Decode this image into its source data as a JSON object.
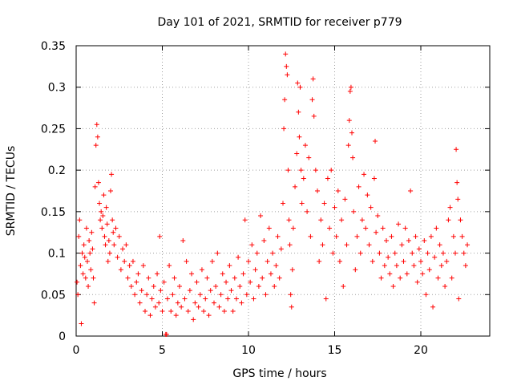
{
  "chart_data": {
    "type": "scatter",
    "title": "Day 101 of 2021, SRMTID for receiver p779",
    "xlabel": "GPS time / hours",
    "ylabel": "SRMTID / TECUs",
    "xlim": [
      0,
      24
    ],
    "ylim": [
      0,
      0.35
    ],
    "x_ticks": [
      0,
      5,
      10,
      15,
      20
    ],
    "x_tick_labels": [
      "0",
      "5",
      "10",
      "15",
      "20"
    ],
    "y_ticks": [
      0,
      0.05,
      0.1,
      0.15,
      0.2,
      0.25,
      0.3,
      0.35
    ],
    "y_tick_labels": [
      "0",
      "0.05",
      "0.1",
      "0.15",
      "0.2",
      "0.25",
      "0.3",
      "0.35"
    ],
    "grid": true,
    "marker": "plus",
    "color": "#ff0000",
    "series": [
      {
        "name": "SRMTID",
        "points": [
          [
            0.05,
            0.065
          ],
          [
            0.1,
            0.05
          ],
          [
            0.15,
            0.12
          ],
          [
            0.2,
            0.14
          ],
          [
            0.25,
            0.085
          ],
          [
            0.3,
            0.015
          ],
          [
            0.35,
            0.1
          ],
          [
            0.4,
            0.075
          ],
          [
            0.45,
            0.11
          ],
          [
            0.5,
            0.095
          ],
          [
            0.55,
            0.07
          ],
          [
            0.6,
            0.13
          ],
          [
            0.65,
            0.09
          ],
          [
            0.7,
            0.06
          ],
          [
            0.75,
            0.115
          ],
          [
            0.8,
            0.1
          ],
          [
            0.85,
            0.08
          ],
          [
            0.9,
            0.125
          ],
          [
            0.95,
            0.105
          ],
          [
            1.0,
            0.07
          ],
          [
            1.05,
            0.04
          ],
          [
            1.1,
            0.18
          ],
          [
            1.15,
            0.23
          ],
          [
            1.2,
            0.255
          ],
          [
            1.25,
            0.24
          ],
          [
            1.3,
            0.185
          ],
          [
            1.35,
            0.16
          ],
          [
            1.4,
            0.14
          ],
          [
            1.45,
            0.15
          ],
          [
            1.5,
            0.13
          ],
          [
            1.55,
            0.145
          ],
          [
            1.6,
            0.17
          ],
          [
            1.65,
            0.12
          ],
          [
            1.7,
            0.11
          ],
          [
            1.75,
            0.155
          ],
          [
            1.8,
            0.135
          ],
          [
            1.85,
            0.09
          ],
          [
            1.9,
            0.115
          ],
          [
            1.95,
            0.1
          ],
          [
            2.0,
            0.175
          ],
          [
            2.05,
            0.195
          ],
          [
            2.1,
            0.14
          ],
          [
            2.15,
            0.125
          ],
          [
            2.2,
            0.11
          ],
          [
            2.3,
            0.13
          ],
          [
            2.4,
            0.095
          ],
          [
            2.5,
            0.12
          ],
          [
            2.6,
            0.08
          ],
          [
            2.7,
            0.105
          ],
          [
            2.8,
            0.09
          ],
          [
            2.9,
            0.11
          ],
          [
            3.0,
            0.07
          ],
          [
            3.1,
            0.085
          ],
          [
            3.2,
            0.06
          ],
          [
            3.3,
            0.09
          ],
          [
            3.4,
            0.05
          ],
          [
            3.5,
            0.065
          ],
          [
            3.6,
            0.075
          ],
          [
            3.7,
            0.04
          ],
          [
            3.8,
            0.055
          ],
          [
            3.9,
            0.085
          ],
          [
            4.0,
            0.03
          ],
          [
            4.1,
            0.05
          ],
          [
            4.2,
            0.07
          ],
          [
            4.3,
            0.025
          ],
          [
            4.4,
            0.045
          ],
          [
            4.5,
            0.06
          ],
          [
            4.6,
            0.035
          ],
          [
            4.7,
            0.075
          ],
          [
            4.8,
            0.04
          ],
          [
            4.85,
            0.12
          ],
          [
            4.9,
            0.055
          ],
          [
            5.0,
            0.03
          ],
          [
            5.1,
            0.065
          ],
          [
            5.2,
            0.002
          ],
          [
            5.25,
            0.002
          ],
          [
            5.3,
            0.045
          ],
          [
            5.4,
            0.085
          ],
          [
            5.5,
            0.03
          ],
          [
            5.6,
            0.05
          ],
          [
            5.7,
            0.07
          ],
          [
            5.8,
            0.025
          ],
          [
            5.9,
            0.04
          ],
          [
            6.0,
            0.06
          ],
          [
            6.1,
            0.035
          ],
          [
            6.2,
            0.115
          ],
          [
            6.3,
            0.045
          ],
          [
            6.4,
            0.09
          ],
          [
            6.5,
            0.03
          ],
          [
            6.6,
            0.055
          ],
          [
            6.7,
            0.075
          ],
          [
            6.8,
            0.02
          ],
          [
            6.9,
            0.04
          ],
          [
            7.0,
            0.065
          ],
          [
            7.1,
            0.035
          ],
          [
            7.2,
            0.05
          ],
          [
            7.3,
            0.08
          ],
          [
            7.4,
            0.03
          ],
          [
            7.5,
            0.045
          ],
          [
            7.6,
            0.07
          ],
          [
            7.7,
            0.025
          ],
          [
            7.8,
            0.055
          ],
          [
            7.9,
            0.09
          ],
          [
            8.0,
            0.04
          ],
          [
            8.1,
            0.06
          ],
          [
            8.2,
            0.1
          ],
          [
            8.3,
            0.035
          ],
          [
            8.4,
            0.05
          ],
          [
            8.5,
            0.075
          ],
          [
            8.6,
            0.03
          ],
          [
            8.7,
            0.065
          ],
          [
            8.8,
            0.045
          ],
          [
            8.9,
            0.085
          ],
          [
            9.0,
            0.055
          ],
          [
            9.1,
            0.03
          ],
          [
            9.2,
            0.07
          ],
          [
            9.3,
            0.045
          ],
          [
            9.4,
            0.095
          ],
          [
            9.5,
            0.06
          ],
          [
            9.6,
            0.04
          ],
          [
            9.7,
            0.075
          ],
          [
            9.8,
            0.14
          ],
          [
            9.9,
            0.05
          ],
          [
            10.0,
            0.09
          ],
          [
            10.1,
            0.065
          ],
          [
            10.2,
            0.11
          ],
          [
            10.3,
            0.045
          ],
          [
            10.4,
            0.08
          ],
          [
            10.5,
            0.1
          ],
          [
            10.6,
            0.06
          ],
          [
            10.7,
            0.145
          ],
          [
            10.8,
            0.07
          ],
          [
            10.9,
            0.115
          ],
          [
            11.0,
            0.05
          ],
          [
            11.1,
            0.09
          ],
          [
            11.2,
            0.13
          ],
          [
            11.3,
            0.075
          ],
          [
            11.4,
            0.1
          ],
          [
            11.5,
            0.06
          ],
          [
            11.6,
            0.085
          ],
          [
            11.7,
            0.12
          ],
          [
            11.8,
            0.07
          ],
          [
            11.9,
            0.105
          ],
          [
            12.0,
            0.16
          ],
          [
            12.05,
            0.25
          ],
          [
            12.1,
            0.285
          ],
          [
            12.15,
            0.34
          ],
          [
            12.2,
            0.325
          ],
          [
            12.25,
            0.315
          ],
          [
            12.3,
            0.2
          ],
          [
            12.35,
            0.14
          ],
          [
            12.4,
            0.11
          ],
          [
            12.45,
            0.05
          ],
          [
            12.5,
            0.035
          ],
          [
            12.55,
            0.08
          ],
          [
            12.6,
            0.13
          ],
          [
            12.7,
            0.18
          ],
          [
            12.8,
            0.22
          ],
          [
            12.85,
            0.305
          ],
          [
            12.9,
            0.27
          ],
          [
            12.95,
            0.24
          ],
          [
            13.0,
            0.3
          ],
          [
            13.05,
            0.2
          ],
          [
            13.1,
            0.16
          ],
          [
            13.2,
            0.19
          ],
          [
            13.3,
            0.23
          ],
          [
            13.4,
            0.15
          ],
          [
            13.5,
            0.215
          ],
          [
            13.6,
            0.12
          ],
          [
            13.7,
            0.285
          ],
          [
            13.75,
            0.31
          ],
          [
            13.8,
            0.265
          ],
          [
            13.9,
            0.2
          ],
          [
            14.0,
            0.175
          ],
          [
            14.1,
            0.09
          ],
          [
            14.2,
            0.14
          ],
          [
            14.3,
            0.11
          ],
          [
            14.4,
            0.16
          ],
          [
            14.5,
            0.045
          ],
          [
            14.6,
            0.19
          ],
          [
            14.7,
            0.13
          ],
          [
            14.8,
            0.2
          ],
          [
            14.9,
            0.1
          ],
          [
            15.0,
            0.155
          ],
          [
            15.1,
            0.12
          ],
          [
            15.2,
            0.175
          ],
          [
            15.3,
            0.09
          ],
          [
            15.4,
            0.14
          ],
          [
            15.5,
            0.06
          ],
          [
            15.6,
            0.165
          ],
          [
            15.7,
            0.11
          ],
          [
            15.8,
            0.23
          ],
          [
            15.85,
            0.26
          ],
          [
            15.9,
            0.295
          ],
          [
            15.95,
            0.3
          ],
          [
            16.0,
            0.245
          ],
          [
            16.05,
            0.215
          ],
          [
            16.1,
            0.15
          ],
          [
            16.2,
            0.08
          ],
          [
            16.3,
            0.12
          ],
          [
            16.4,
            0.18
          ],
          [
            16.5,
            0.1
          ],
          [
            16.6,
            0.14
          ],
          [
            16.7,
            0.195
          ],
          [
            16.8,
            0.13
          ],
          [
            16.9,
            0.17
          ],
          [
            17.0,
            0.11
          ],
          [
            17.1,
            0.155
          ],
          [
            17.2,
            0.09
          ],
          [
            17.3,
            0.19
          ],
          [
            17.35,
            0.235
          ],
          [
            17.4,
            0.125
          ],
          [
            17.5,
            0.145
          ],
          [
            17.6,
            0.1
          ],
          [
            17.7,
            0.07
          ],
          [
            17.8,
            0.13
          ],
          [
            17.9,
            0.085
          ],
          [
            18.0,
            0.115
          ],
          [
            18.1,
            0.095
          ],
          [
            18.2,
            0.075
          ],
          [
            18.3,
            0.12
          ],
          [
            18.4,
            0.06
          ],
          [
            18.5,
            0.1
          ],
          [
            18.6,
            0.085
          ],
          [
            18.7,
            0.135
          ],
          [
            18.8,
            0.07
          ],
          [
            18.9,
            0.11
          ],
          [
            19.0,
            0.09
          ],
          [
            19.1,
            0.13
          ],
          [
            19.2,
            0.075
          ],
          [
            19.3,
            0.115
          ],
          [
            19.4,
            0.175
          ],
          [
            19.5,
            0.1
          ],
          [
            19.6,
            0.085
          ],
          [
            19.7,
            0.12
          ],
          [
            19.8,
            0.065
          ],
          [
            19.9,
            0.105
          ],
          [
            20.0,
            0.09
          ],
          [
            20.1,
            0.075
          ],
          [
            20.2,
            0.115
          ],
          [
            20.3,
            0.05
          ],
          [
            20.4,
            0.1
          ],
          [
            20.5,
            0.08
          ],
          [
            20.6,
            0.12
          ],
          [
            20.7,
            0.035
          ],
          [
            20.8,
            0.095
          ],
          [
            20.9,
            0.13
          ],
          [
            21.0,
            0.07
          ],
          [
            21.1,
            0.11
          ],
          [
            21.2,
            0.085
          ],
          [
            21.3,
            0.1
          ],
          [
            21.4,
            0.06
          ],
          [
            21.5,
            0.09
          ],
          [
            21.6,
            0.14
          ],
          [
            21.7,
            0.155
          ],
          [
            21.8,
            0.07
          ],
          [
            21.9,
            0.12
          ],
          [
            22.0,
            0.1
          ],
          [
            22.05,
            0.225
          ],
          [
            22.1,
            0.185
          ],
          [
            22.15,
            0.165
          ],
          [
            22.2,
            0.045
          ],
          [
            22.3,
            0.14
          ],
          [
            22.4,
            0.12
          ],
          [
            22.5,
            0.1
          ],
          [
            22.6,
            0.085
          ],
          [
            22.7,
            0.11
          ]
        ]
      }
    ]
  }
}
